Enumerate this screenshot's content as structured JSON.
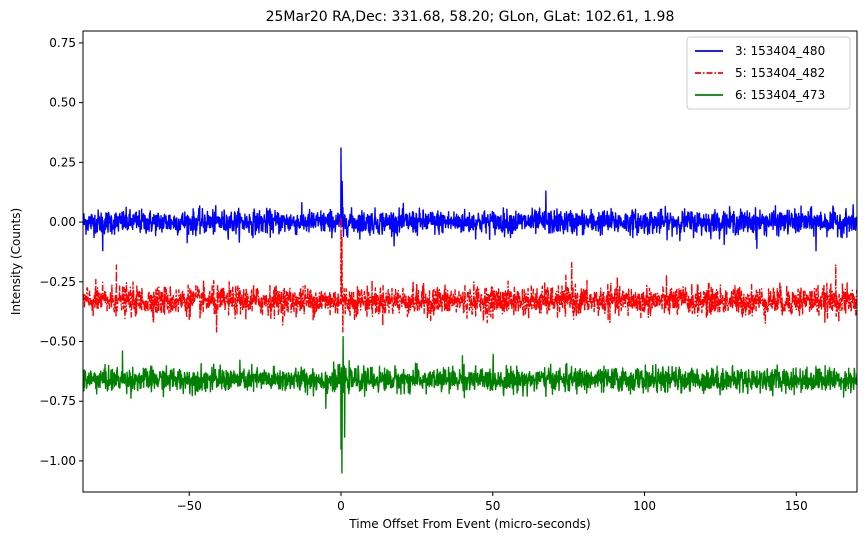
{
  "chart_data": {
    "type": "line",
    "title": "25Mar20 RA,Dec:  331.68,  58.20; GLon, GLat:  102.61,   1.98",
    "xlabel": "Time Offset From Event (micro-seconds)",
    "ylabel": "Intensity (Counts)",
    "xlim": [
      -85,
      170
    ],
    "ylim": [
      -1.13,
      0.8
    ],
    "xticks": [
      -50,
      0,
      50,
      100,
      150
    ],
    "xtick_labels": [
      "−50",
      "0",
      "50",
      "100",
      "150"
    ],
    "yticks": [
      0.75,
      0.5,
      0.25,
      0.0,
      -0.25,
      -0.5,
      -0.75,
      -1.0
    ],
    "ytick_labels": [
      "0.75",
      "0.50",
      "0.25",
      "0.00",
      "−0.25",
      "−0.50",
      "−0.75",
      "−1.00"
    ],
    "legend_position": "top-right",
    "series": [
      {
        "name": "3: 153404_480",
        "color": "#0000ff",
        "style": "solid",
        "baseline": 0.0,
        "noise_amplitude": 0.045,
        "spikes": [
          {
            "x": 0.0,
            "y": 0.31
          },
          {
            "x": 0.4,
            "y": 0.17
          },
          {
            "x": 0.8,
            "y": -0.06
          },
          {
            "x": 67.5,
            "y": 0.13
          },
          {
            "x": -78.5,
            "y": -0.12
          },
          {
            "x": 137.0,
            "y": -0.11
          },
          {
            "x": 156.5,
            "y": -0.12
          }
        ]
      },
      {
        "name": "5: 153404_482",
        "color": "#ff0000",
        "style": "dashdot",
        "baseline": -0.33,
        "noise_amplitude": 0.055,
        "spikes": [
          {
            "x": 0.0,
            "y": 0.02
          },
          {
            "x": 0.3,
            "y": -0.06
          },
          {
            "x": 0.6,
            "y": -0.46
          },
          {
            "x": -74.0,
            "y": -0.18
          },
          {
            "x": 76.0,
            "y": -0.17
          },
          {
            "x": -41.0,
            "y": -0.46
          },
          {
            "x": 163.0,
            "y": -0.18
          }
        ]
      },
      {
        "name": "6: 153404_473",
        "color": "#008000",
        "style": "solid",
        "baseline": -0.66,
        "noise_amplitude": 0.045,
        "spikes": [
          {
            "x": 0.0,
            "y": -0.95
          },
          {
            "x": 0.3,
            "y": -1.05
          },
          {
            "x": 0.7,
            "y": -0.48
          },
          {
            "x": 1.2,
            "y": -0.9
          },
          {
            "x": -5.0,
            "y": -0.78
          },
          {
            "x": -72.0,
            "y": -0.54
          },
          {
            "x": 40.0,
            "y": -0.56
          }
        ]
      }
    ]
  }
}
